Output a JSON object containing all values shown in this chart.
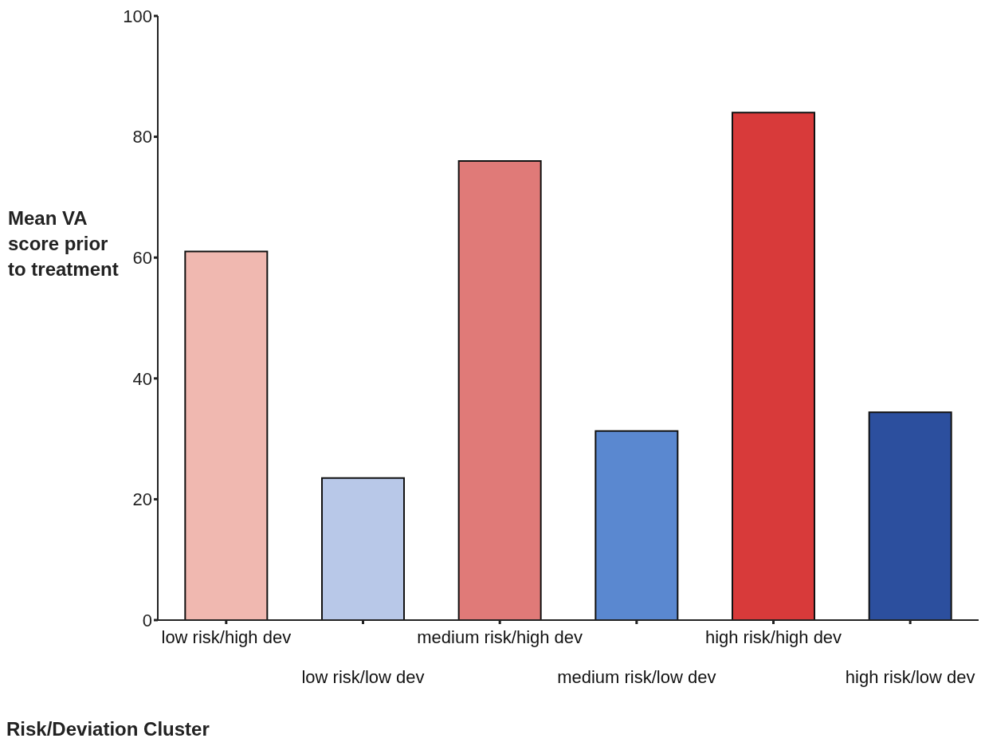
{
  "chart_data": {
    "type": "bar",
    "xlabel": "Risk/Deviation Cluster",
    "ylabel": "Mean VA score prior to treatment",
    "categories": [
      "low risk/high dev",
      "low risk/low dev",
      "medium risk/high dev",
      "medium risk/low dev",
      "high risk/high dev",
      "high risk/low dev"
    ],
    "values": [
      61,
      23.5,
      76,
      31.3,
      84,
      34.4
    ],
    "colors": [
      "#f0b8b0",
      "#b8c8e8",
      "#e07a78",
      "#5a88d0",
      "#d83a3a",
      "#2c4f9e"
    ],
    "ylim": [
      0,
      100
    ],
    "yticks": [
      0,
      20,
      40,
      60,
      80,
      100
    ],
    "grid": false
  }
}
